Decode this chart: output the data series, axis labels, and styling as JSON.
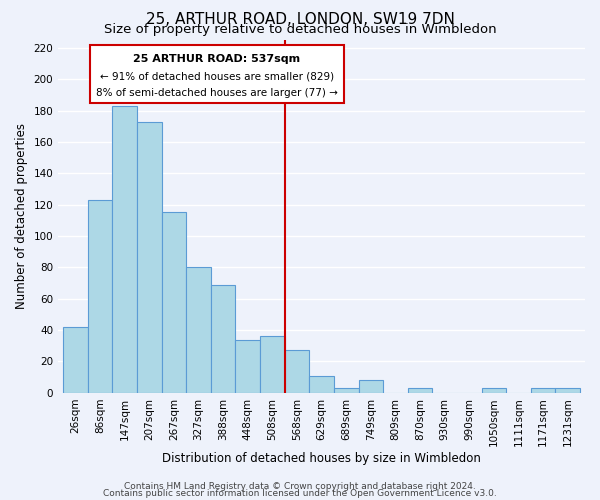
{
  "title": "25, ARTHUR ROAD, LONDON, SW19 7DN",
  "subtitle": "Size of property relative to detached houses in Wimbledon",
  "xlabel": "Distribution of detached houses by size in Wimbledon",
  "ylabel": "Number of detached properties",
  "footer_lines": [
    "Contains HM Land Registry data © Crown copyright and database right 2024.",
    "Contains public sector information licensed under the Open Government Licence v3.0."
  ],
  "bar_labels": [
    "26sqm",
    "86sqm",
    "147sqm",
    "207sqm",
    "267sqm",
    "327sqm",
    "388sqm",
    "448sqm",
    "508sqm",
    "568sqm",
    "629sqm",
    "689sqm",
    "749sqm",
    "809sqm",
    "870sqm",
    "930sqm",
    "990sqm",
    "1050sqm",
    "1111sqm",
    "1171sqm",
    "1231sqm"
  ],
  "bar_values": [
    42,
    123,
    183,
    173,
    115,
    80,
    69,
    34,
    36,
    27,
    11,
    3,
    8,
    0,
    3,
    0,
    0,
    3,
    0,
    3,
    3
  ],
  "bar_color": "#add8e6",
  "bar_edge_color": "#5b9bd5",
  "property_line_x": 8.5,
  "property_line_label": "25 ARTHUR ROAD: 537sqm",
  "annotation_line1": "← 91% of detached houses are smaller (829)",
  "annotation_line2": "8% of semi-detached houses are larger (77) →",
  "annotation_box_color": "#ffffff",
  "annotation_box_edge": "#cc0000",
  "vline_color": "#cc0000",
  "ylim": [
    0,
    225
  ],
  "yticks": [
    0,
    20,
    40,
    60,
    80,
    100,
    120,
    140,
    160,
    180,
    200,
    220
  ],
  "background_color": "#eef2fb",
  "grid_color": "#ffffff",
  "title_fontsize": 11,
  "subtitle_fontsize": 9.5,
  "axis_label_fontsize": 8.5,
  "tick_fontsize": 7.5,
  "footer_fontsize": 6.5
}
